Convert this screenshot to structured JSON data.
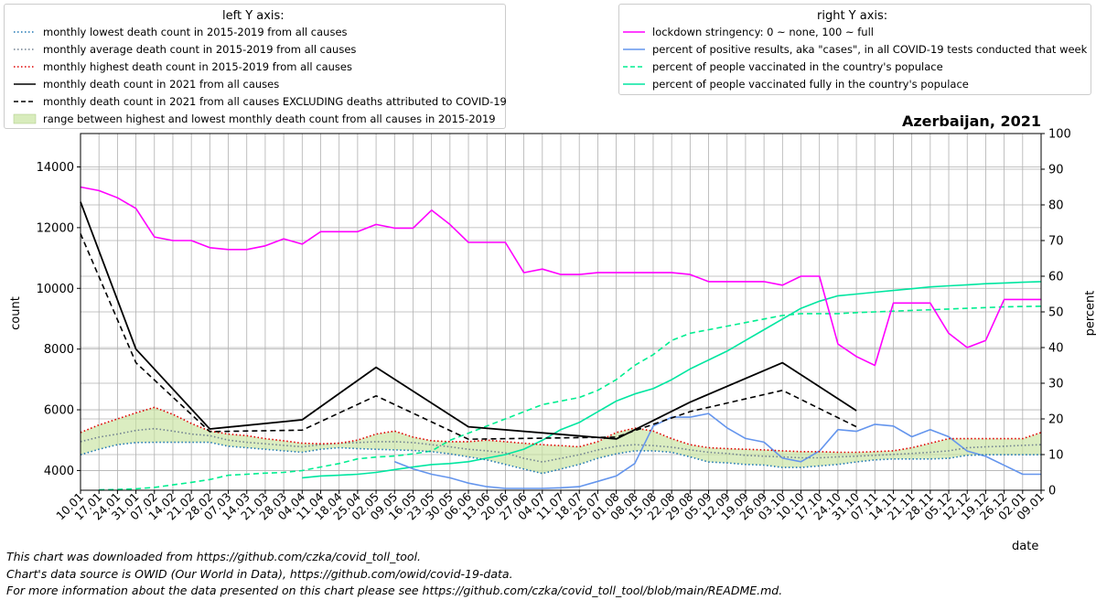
{
  "left_legend": {
    "title": "left Y axis:",
    "entries": [
      {
        "label": "monthly lowest death count in 2015-2019 from all causes",
        "color": "#1f77b4",
        "style": "dotted"
      },
      {
        "label": "monthly average death count in 2015-2019 from all causes",
        "color": "#708090",
        "style": "dotted"
      },
      {
        "label": "monthly highest death count in 2015-2019 from all causes",
        "color": "#e00000",
        "style": "dotted"
      },
      {
        "label": "monthly death count in 2021 from all causes",
        "color": "#000000",
        "style": "solid"
      },
      {
        "label": "monthly death count in 2021 from all causes EXCLUDING deaths attributed to COVID-19",
        "color": "#000000",
        "style": "dashed"
      },
      {
        "label": "range between highest and lowest monthly death count from all causes in 2015-2019",
        "color": "#c8e4a0",
        "style": "fill"
      }
    ]
  },
  "right_legend": {
    "title": "right Y axis:",
    "entries": [
      {
        "label": "lockdown stringency: 0 ~ none, 100 ~ full",
        "color": "#ff00ff",
        "style": "solid"
      },
      {
        "label": "percent of positive results, aka \"cases\", in all COVID-19 tests conducted that week",
        "color": "#6495ed",
        "style": "solid"
      },
      {
        "label": "percent of people vaccinated in the country's populace",
        "color": "#00ee90",
        "style": "dashed"
      },
      {
        "label": "percent of people vaccinated fully in the country's populace",
        "color": "#00e6a0",
        "style": "solid"
      }
    ]
  },
  "footnotes": [
    "This chart was downloaded from https://github.com/czka/covid_toll_tool.",
    "Chart's data source is OWID (Our World in Data), https://github.com/owid/covid-19-data.",
    "For more information about the data presented on this chart please see https://github.com/czka/covid_toll_tool/blob/main/README.md."
  ],
  "chart_data": {
    "type": "line",
    "title": "Azerbaijan, 2021",
    "xlabel": "date",
    "ylabel_left": "count",
    "ylabel_right": "percent",
    "ylim_left": [
      3350,
      15100
    ],
    "ylim_right": [
      0,
      100
    ],
    "yticks_left": [
      4000,
      6000,
      8000,
      10000,
      12000,
      14000
    ],
    "yticks_right": [
      0,
      10,
      20,
      30,
      40,
      50,
      60,
      70,
      80,
      90,
      100
    ],
    "grid": true,
    "x_tick_labels": [
      "10.01",
      "17.01",
      "24.01",
      "31.01",
      "07.02",
      "14.02",
      "21.02",
      "28.02",
      "07.03",
      "14.03",
      "21.03",
      "28.03",
      "04.04",
      "11.04",
      "18.04",
      "25.04",
      "02.05",
      "09.05",
      "16.05",
      "23.05",
      "30.05",
      "06.06",
      "13.06",
      "20.06",
      "27.06",
      "04.07",
      "11.07",
      "18.07",
      "25.07",
      "01.08",
      "08.08",
      "15.08",
      "22.08",
      "29.08",
      "05.09",
      "12.09",
      "19.09",
      "26.09",
      "03.10",
      "10.10",
      "17.10",
      "24.10",
      "31.10",
      "07.11",
      "14.11",
      "21.11",
      "28.11",
      "05.12",
      "12.12",
      "19.12",
      "26.12",
      "02.01",
      "09.01"
    ],
    "left_series": [
      {
        "name": "monthly lowest death count in 2015-2019 from all causes",
        "x": [
          0,
          1,
          2,
          3,
          4,
          5,
          6,
          7,
          8,
          9,
          10,
          11,
          12,
          13,
          14,
          15,
          16,
          17,
          18,
          19,
          20,
          21,
          22,
          23,
          24,
          25,
          26,
          27,
          28,
          29,
          30,
          31,
          32,
          33,
          34,
          35,
          36,
          37,
          38,
          39,
          40,
          41,
          42,
          43,
          44,
          45,
          46,
          47,
          48,
          49,
          50,
          51,
          52
        ],
        "y": [
          4520,
          4700,
          4850,
          4920,
          4930,
          4930,
          4930,
          4930,
          4800,
          4750,
          4700,
          4650,
          4600,
          4700,
          4750,
          4720,
          4700,
          4680,
          4660,
          4620,
          4550,
          4450,
          4350,
          4200,
          4050,
          3900,
          4050,
          4200,
          4400,
          4550,
          4650,
          4650,
          4600,
          4450,
          4280,
          4250,
          4200,
          4180,
          4100,
          4100,
          4150,
          4200,
          4280,
          4350,
          4380,
          4380,
          4380,
          4400,
          4500,
          4520,
          4520,
          4520,
          4520
        ]
      },
      {
        "name": "monthly average death count in 2015-2019 from all causes",
        "x": [
          0,
          1,
          2,
          3,
          4,
          5,
          6,
          7,
          8,
          9,
          10,
          11,
          12,
          13,
          14,
          15,
          16,
          17,
          18,
          19,
          20,
          21,
          22,
          23,
          24,
          25,
          26,
          27,
          28,
          29,
          30,
          31,
          32,
          33,
          34,
          35,
          36,
          37,
          38,
          39,
          40,
          41,
          42,
          43,
          44,
          45,
          46,
          47,
          48,
          49,
          50,
          51,
          52
        ],
        "y": [
          4950,
          5100,
          5200,
          5320,
          5380,
          5300,
          5200,
          5150,
          5000,
          4930,
          4880,
          4830,
          4780,
          4850,
          4900,
          4920,
          4950,
          4950,
          4920,
          4850,
          4780,
          4700,
          4650,
          4580,
          4400,
          4280,
          4400,
          4520,
          4680,
          4800,
          4850,
          4820,
          4770,
          4680,
          4600,
          4560,
          4500,
          4470,
          4450,
          4420,
          4420,
          4450,
          4470,
          4500,
          4530,
          4560,
          4600,
          4650,
          4750,
          4780,
          4800,
          4830,
          4850
        ]
      },
      {
        "name": "monthly highest death count in 2015-2019 from all causes",
        "x": [
          0,
          1,
          2,
          3,
          4,
          5,
          6,
          7,
          8,
          9,
          10,
          11,
          12,
          13,
          14,
          15,
          16,
          17,
          18,
          19,
          20,
          21,
          22,
          23,
          24,
          25,
          26,
          27,
          28,
          29,
          30,
          31,
          32,
          33,
          34,
          35,
          36,
          37,
          38,
          39,
          40,
          41,
          42,
          43,
          44,
          45,
          46,
          47,
          48,
          49,
          50,
          51,
          52
        ],
        "y": [
          5250,
          5500,
          5700,
          5900,
          6080,
          5850,
          5550,
          5300,
          5200,
          5150,
          5050,
          4980,
          4900,
          4880,
          4900,
          5000,
          5200,
          5300,
          5100,
          4980,
          4950,
          4950,
          5000,
          4950,
          4900,
          4850,
          4820,
          4780,
          4950,
          5250,
          5400,
          5300,
          5050,
          4850,
          4750,
          4720,
          4700,
          4680,
          4650,
          4620,
          4620,
          4600,
          4600,
          4620,
          4650,
          4750,
          4900,
          5050,
          5050,
          5050,
          5050,
          5050,
          5250
        ]
      },
      {
        "name": "monthly death count in 2021 from all causes",
        "x": [
          0,
          3,
          7,
          12,
          16,
          21,
          29,
          33,
          38,
          42
        ],
        "y": [
          12850,
          8000,
          5370,
          5670,
          7400,
          5440,
          5040,
          6250,
          7550,
          5970
        ]
      },
      {
        "name": "monthly death count in 2021 from all causes EXCLUDING deaths attributed to COVID-19",
        "x": [
          0,
          3,
          7,
          12,
          16,
          21,
          29,
          33,
          38,
          42
        ],
        "y": [
          11800,
          7550,
          5280,
          5330,
          6460,
          5030,
          5100,
          5940,
          6640,
          5440
        ]
      }
    ],
    "right_series": [
      {
        "name": "lockdown stringency: 0 ~ none, 100 ~ full",
        "x": [
          0,
          1,
          2,
          3,
          4,
          5,
          6,
          7,
          8,
          9,
          10,
          11,
          12,
          13,
          14,
          15,
          16,
          17,
          18,
          19,
          20,
          21,
          22,
          23,
          24,
          25,
          26,
          27,
          28,
          29,
          30,
          31,
          32,
          33,
          34,
          35,
          36,
          37,
          38,
          39,
          40,
          41,
          42,
          43,
          44,
          45,
          46,
          47,
          48,
          49,
          50,
          51,
          52
        ],
        "y": [
          85,
          84,
          82,
          79,
          71,
          70,
          70,
          68,
          67.5,
          67.5,
          68.5,
          70.5,
          69,
          72.5,
          72.5,
          72.5,
          74.5,
          73.5,
          73.5,
          78.5,
          74.5,
          69.5,
          69.5,
          69.5,
          61,
          62,
          60.5,
          60.5,
          61,
          61,
          61,
          61,
          61,
          60.5,
          58.5,
          58.5,
          58.5,
          58.5,
          57.5,
          60,
          60,
          41,
          37.5,
          35,
          52.5,
          52.5,
          52.5,
          44,
          40,
          42,
          53.5,
          53.5,
          53.5
        ]
      },
      {
        "name": "percent of positive results, aka \"cases\", in all COVID-19 tests conducted that week",
        "x": [
          17,
          18,
          19,
          20,
          21,
          22,
          23,
          24,
          25,
          26,
          27,
          28,
          29,
          30,
          31,
          32,
          33,
          34,
          35,
          36,
          37,
          38,
          39,
          40,
          41,
          42,
          43,
          44,
          45,
          46,
          47,
          48,
          49,
          50,
          51,
          52
        ],
        "y": [
          8,
          6,
          4.5,
          3.5,
          2,
          1,
          0.5,
          0.5,
          0.5,
          0.7,
          1,
          2.5,
          4,
          7.5,
          18,
          20.5,
          20.5,
          21.5,
          17.5,
          14.5,
          13.5,
          9,
          8,
          11,
          17,
          16.5,
          18.5,
          18,
          15,
          17,
          15,
          11,
          9.5,
          7,
          4.5,
          4.5
        ]
      },
      {
        "name": "percent of people vaccinated in the country's populace",
        "x": [
          1,
          2,
          3,
          4,
          5,
          6,
          7,
          8,
          9,
          10,
          11,
          12,
          13,
          14,
          15,
          16,
          17,
          18,
          19,
          20,
          21,
          22,
          23,
          24,
          25,
          26,
          27,
          28,
          29,
          30,
          31,
          32,
          33,
          34,
          35,
          36,
          37,
          38,
          39,
          40,
          41,
          42,
          43,
          44,
          45,
          46,
          47,
          48,
          49,
          50,
          51,
          52
        ],
        "y": [
          0.1,
          0.2,
          0.4,
          0.8,
          1.5,
          2.2,
          3,
          4.2,
          4.5,
          4.8,
          5,
          5.5,
          6.5,
          7.5,
          8.8,
          9.3,
          9.6,
          10.2,
          11,
          14,
          16,
          18,
          20,
          22,
          24,
          25,
          26,
          28,
          31,
          35,
          38,
          42,
          44,
          45,
          46,
          47,
          48,
          49,
          49.5,
          49.5,
          49.5,
          49.8,
          50,
          50.2,
          50.4,
          50.6,
          50.8,
          51,
          51.2,
          51.4,
          51.5,
          51.6
        ]
      },
      {
        "name": "percent of people vaccinated fully in the country's populace",
        "x": [
          12,
          13,
          14,
          15,
          16,
          17,
          18,
          19,
          20,
          21,
          22,
          23,
          24,
          25,
          26,
          27,
          28,
          29,
          30,
          31,
          32,
          33,
          34,
          35,
          36,
          37,
          38,
          39,
          40,
          41,
          42,
          43,
          44,
          45,
          46,
          47,
          48,
          49,
          50,
          51,
          52
        ],
        "y": [
          3.5,
          4,
          4.2,
          4.5,
          5,
          5.8,
          6.5,
          7.2,
          7.5,
          8,
          9,
          10,
          11.5,
          14,
          17,
          19,
          22,
          25,
          27,
          28.5,
          31,
          34,
          36.5,
          39,
          42,
          45,
          48,
          51,
          53,
          54.5,
          55,
          55.5,
          56,
          56.5,
          57,
          57.3,
          57.6,
          57.9,
          58.1,
          58.3,
          58.5
        ]
      }
    ]
  }
}
